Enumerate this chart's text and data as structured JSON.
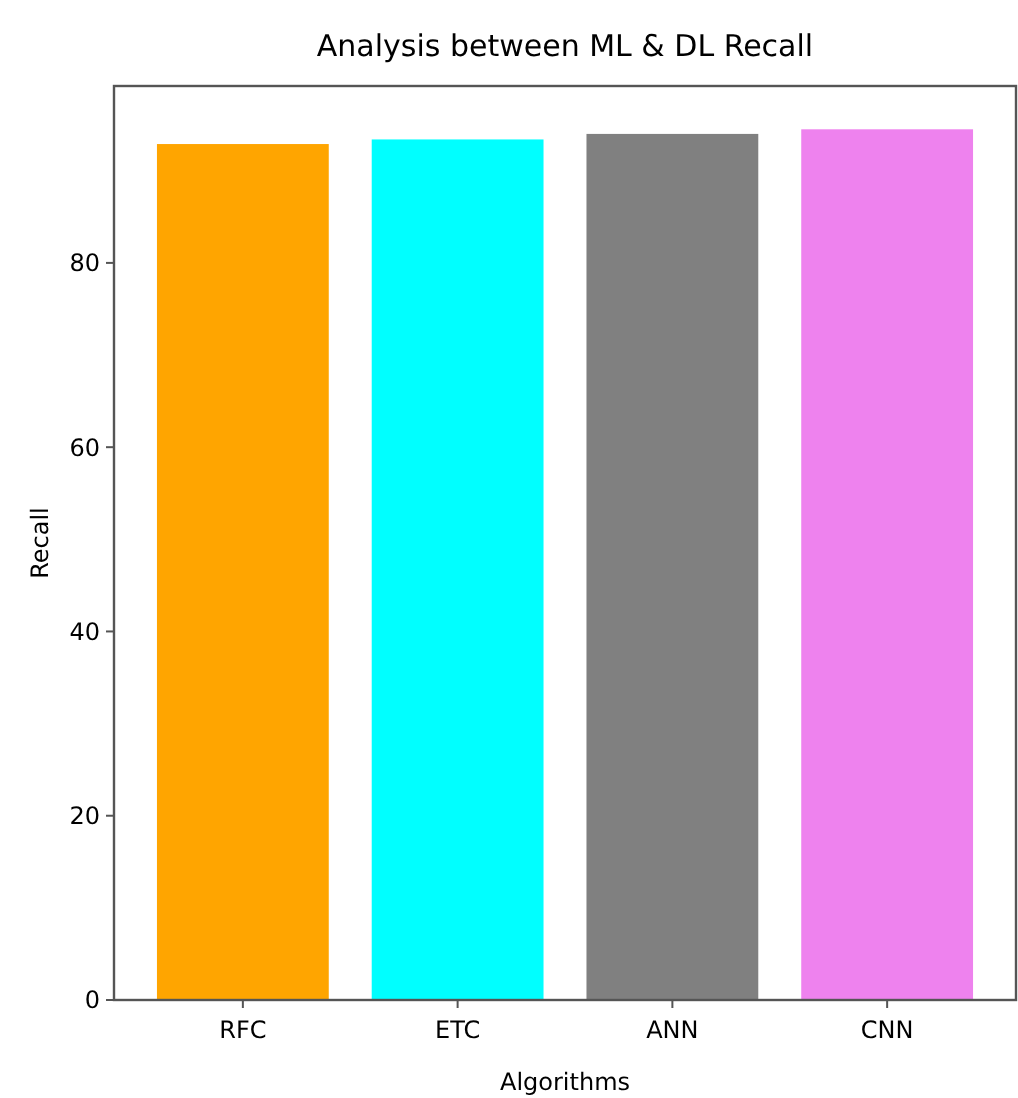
{
  "chart_data": {
    "type": "bar",
    "title": "Analysis between ML & DL Recall",
    "xlabel": "Algorithms",
    "ylabel": "Recall",
    "categories": [
      "RFC",
      "ETC",
      "ANN",
      "CNN"
    ],
    "values": [
      92.9,
      93.4,
      94.0,
      94.5
    ],
    "colors": [
      "#ffa500",
      "#00ffff",
      "#808080",
      "#ee82ee"
    ],
    "ylim": [
      0,
      99.2
    ],
    "yticks": [
      0,
      20,
      40,
      60,
      80
    ],
    "grid": false
  }
}
